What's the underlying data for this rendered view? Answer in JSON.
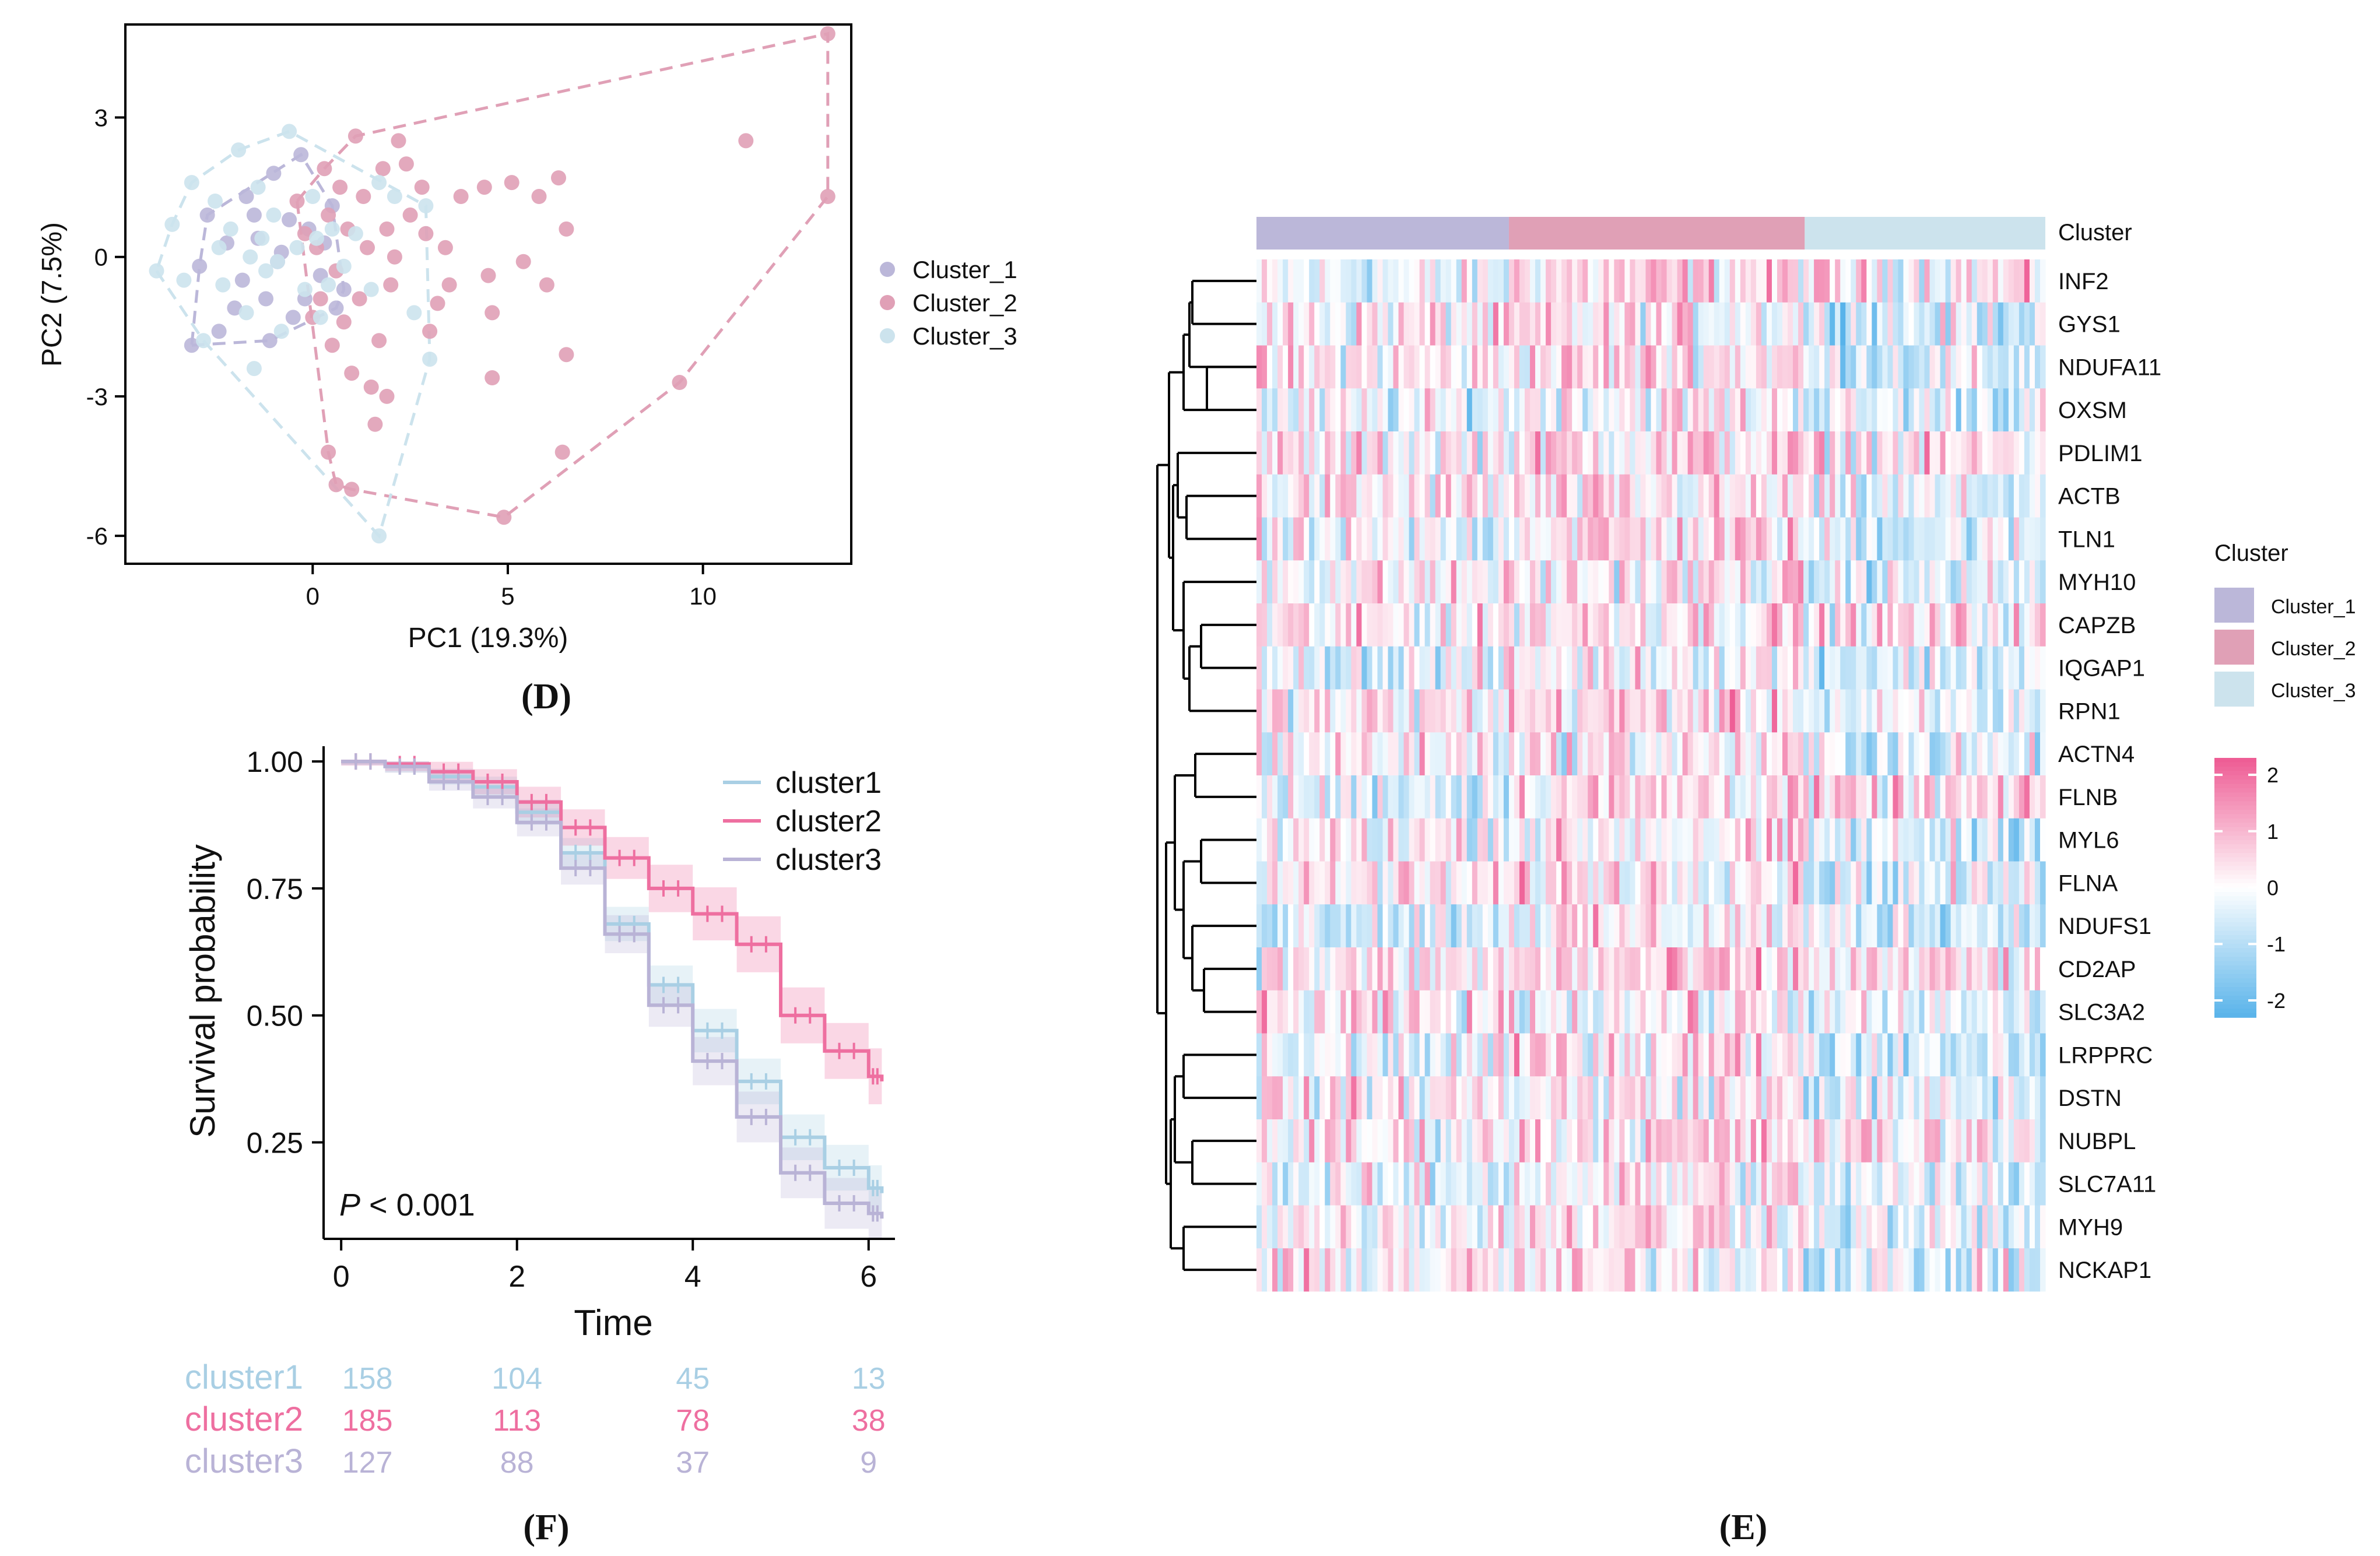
{
  "colors": {
    "cluster_1_pca": "#bbb7d9",
    "cluster_2_pca": "#e0a0b6",
    "cluster_3_pca": "#cce3ed",
    "km_cluster1": "#a9cfe4",
    "km_cluster2": "#ee6fa0",
    "km_cluster3": "#b9b3d6",
    "heat_high": "#ee5a93",
    "heat_mid": "#ffffff",
    "heat_low": "#58b3ea"
  },
  "panels": {
    "d_label": "(D)",
    "e_label": "(E)",
    "f_label": "(F)"
  },
  "chart_data": [
    {
      "id": "pca",
      "type": "scatter",
      "xlabel": "PC1 (19.3%)",
      "ylabel": "PC2 (7.5%)",
      "xlim": [
        -4.8,
        13.8
      ],
      "ylim": [
        -6.6,
        5.0
      ],
      "xticks": [
        0,
        5,
        10
      ],
      "yticks": [
        -6,
        -3,
        0,
        3
      ],
      "legend": [
        "Cluster_1",
        "Cluster_2",
        "Cluster_3"
      ],
      "series": [
        {
          "name": "Cluster_1",
          "points": [
            [
              -2.9,
              -0.2
            ],
            [
              -2.4,
              -1.6
            ],
            [
              -2.2,
              0.3
            ],
            [
              -1.8,
              -0.5
            ],
            [
              -1.5,
              0.9
            ],
            [
              -1.2,
              -0.9
            ],
            [
              -1.0,
              1.8
            ],
            [
              -0.8,
              0.1
            ],
            [
              -0.5,
              -1.3
            ],
            [
              -0.3,
              2.2
            ],
            [
              -0.1,
              0.6
            ],
            [
              0.2,
              -0.4
            ],
            [
              0.5,
              1.1
            ],
            [
              0.8,
              -0.7
            ],
            [
              -2.7,
              0.9
            ],
            [
              -2.0,
              -1.1
            ],
            [
              -1.4,
              0.4
            ],
            [
              -0.9,
              -0.1
            ],
            [
              -0.6,
              0.8
            ],
            [
              -0.2,
              -0.9
            ],
            [
              0.3,
              0.3
            ],
            [
              -1.7,
              1.3
            ],
            [
              -3.1,
              -1.9
            ],
            [
              -1.1,
              -1.8
            ],
            [
              0.6,
              -1.1
            ]
          ]
        },
        {
          "name": "Cluster_2",
          "points": [
            [
              13.2,
              4.8
            ],
            [
              13.2,
              1.3
            ],
            [
              11.1,
              2.5
            ],
            [
              9.4,
              -2.7
            ],
            [
              6.4,
              -4.2
            ],
            [
              6.5,
              -2.1
            ],
            [
              4.9,
              -5.6
            ],
            [
              4.6,
              -1.2
            ],
            [
              4.6,
              -2.6
            ],
            [
              4.5,
              -0.4
            ],
            [
              3.5,
              -0.6
            ],
            [
              3.4,
              0.2
            ],
            [
              3.2,
              -1.0
            ],
            [
              3.0,
              -1.6
            ],
            [
              2.8,
              1.5
            ],
            [
              2.5,
              0.9
            ],
            [
              2.4,
              2.0
            ],
            [
              2.2,
              2.5
            ],
            [
              2.0,
              -0.6
            ],
            [
              1.9,
              0.6
            ],
            [
              1.8,
              1.9
            ],
            [
              1.7,
              -1.8
            ],
            [
              1.6,
              -3.6
            ],
            [
              1.5,
              -2.8
            ],
            [
              1.4,
              0.2
            ],
            [
              1.3,
              1.3
            ],
            [
              1.2,
              -0.9
            ],
            [
              1.1,
              2.6
            ],
            [
              1.0,
              -5.0
            ],
            [
              1.0,
              -2.5
            ],
            [
              0.9,
              0.6
            ],
            [
              0.8,
              -1.4
            ],
            [
              0.7,
              1.5
            ],
            [
              0.6,
              -0.3
            ],
            [
              0.5,
              -1.9
            ],
            [
              0.4,
              0.9
            ],
            [
              0.3,
              1.9
            ],
            [
              0.2,
              -0.9
            ],
            [
              0.1,
              0.2
            ],
            [
              0.0,
              -1.3
            ],
            [
              -0.2,
              0.5
            ],
            [
              -0.4,
              1.2
            ],
            [
              0.4,
              -4.2
            ],
            [
              0.6,
              -4.9
            ],
            [
              2.9,
              0.5
            ],
            [
              3.8,
              1.3
            ],
            [
              4.4,
              1.5
            ],
            [
              5.1,
              1.6
            ],
            [
              5.8,
              1.3
            ],
            [
              6.3,
              1.7
            ],
            [
              6.5,
              0.6
            ],
            [
              6.0,
              -0.6
            ],
            [
              5.4,
              -0.1
            ],
            [
              1.9,
              -3.0
            ],
            [
              2.1,
              0.0
            ]
          ]
        },
        {
          "name": "Cluster_3",
          "points": [
            [
              -4.0,
              -0.3
            ],
            [
              -3.6,
              0.7
            ],
            [
              -3.1,
              1.6
            ],
            [
              -2.8,
              -1.8
            ],
            [
              -2.5,
              1.2
            ],
            [
              -2.3,
              -0.6
            ],
            [
              -2.1,
              0.6
            ],
            [
              -1.9,
              2.3
            ],
            [
              -1.7,
              -1.2
            ],
            [
              -1.6,
              0.0
            ],
            [
              -1.4,
              1.5
            ],
            [
              -1.2,
              -0.3
            ],
            [
              -1.0,
              0.9
            ],
            [
              -0.8,
              -1.6
            ],
            [
              -0.6,
              2.7
            ],
            [
              -0.4,
              0.2
            ],
            [
              -0.2,
              -0.7
            ],
            [
              0.0,
              1.3
            ],
            [
              0.2,
              -1.3
            ],
            [
              0.5,
              0.6
            ],
            [
              0.8,
              -0.2
            ],
            [
              1.1,
              0.5
            ],
            [
              1.5,
              -0.7
            ],
            [
              1.7,
              1.6
            ],
            [
              2.1,
              1.3
            ],
            [
              2.6,
              -1.2
            ],
            [
              3.0,
              -2.2
            ],
            [
              2.9,
              1.1
            ],
            [
              1.7,
              -6.0
            ],
            [
              -1.5,
              -2.4
            ],
            [
              -2.4,
              0.2
            ],
            [
              -3.3,
              -0.5
            ],
            [
              -0.9,
              -0.1
            ],
            [
              -1.3,
              0.4
            ],
            [
              0.1,
              0.4
            ],
            [
              0.4,
              -0.6
            ]
          ]
        }
      ]
    },
    {
      "id": "km",
      "type": "line",
      "xlabel": "Time",
      "ylabel": "Survival probability",
      "xlim": [
        -0.2,
        6.3
      ],
      "ylim": [
        0.06,
        1.03
      ],
      "xticks": [
        0,
        2,
        4,
        6
      ],
      "yticks": [
        0.25,
        0.5,
        0.75,
        1.0
      ],
      "ytick_labels": [
        "0.25",
        "0.50",
        "0.75",
        "1.00"
      ],
      "annotation_italic": "P",
      "annotation_rest": " < 0.001",
      "legend": [
        "cluster1",
        "cluster2",
        "cluster3"
      ],
      "series": [
        {
          "name": "cluster1",
          "x": [
            0,
            0.5,
            1.0,
            1.5,
            2.0,
            2.5,
            3.0,
            3.5,
            4.0,
            4.5,
            5.0,
            5.5,
            6.0,
            6.15
          ],
          "y": [
            1.0,
            0.99,
            0.97,
            0.95,
            0.9,
            0.82,
            0.68,
            0.56,
            0.47,
            0.37,
            0.26,
            0.2,
            0.16,
            0.15
          ]
        },
        {
          "name": "cluster2",
          "x": [
            0,
            0.5,
            1.0,
            1.5,
            2.0,
            2.5,
            3.0,
            3.5,
            4.0,
            4.5,
            5.0,
            5.5,
            6.0,
            6.15
          ],
          "y": [
            1.0,
            0.995,
            0.98,
            0.96,
            0.92,
            0.87,
            0.81,
            0.75,
            0.7,
            0.64,
            0.5,
            0.43,
            0.38,
            0.37
          ]
        },
        {
          "name": "cluster3",
          "x": [
            0,
            0.5,
            1.0,
            1.5,
            2.0,
            2.5,
            3.0,
            3.5,
            4.0,
            4.5,
            5.0,
            5.5,
            6.0,
            6.15
          ],
          "y": [
            1.0,
            0.99,
            0.96,
            0.93,
            0.88,
            0.79,
            0.66,
            0.52,
            0.41,
            0.3,
            0.19,
            0.13,
            0.11,
            0.1
          ]
        }
      ],
      "risk_table": {
        "times": [
          0,
          2,
          4,
          6
        ],
        "rows": [
          {
            "name": "cluster1",
            "counts": [
              "158",
              "104",
              "45",
              "13"
            ]
          },
          {
            "name": "cluster2",
            "counts": [
              "185",
              "113",
              "78",
              "38"
            ]
          },
          {
            "name": "cluster3",
            "counts": [
              "127",
              "88",
              "37",
              "9"
            ]
          }
        ]
      }
    },
    {
      "id": "heatmap",
      "type": "heatmap",
      "annotation_label": "Cluster",
      "annotation_fractions": [
        0.32,
        0.375,
        0.305
      ],
      "genes": [
        "INF2",
        "GYS1",
        "NDUFA11",
        "OXSM",
        "PDLIM1",
        "ACTB",
        "TLN1",
        "MYH10",
        "CAPZB",
        "IQGAP1",
        "RPN1",
        "ACTN4",
        "FLNB",
        "MYL6",
        "FLNA",
        "NDUFS1",
        "CD2AP",
        "SLC3A2",
        "LRPPRC",
        "DSTN",
        "NUBPL",
        "SLC7A11",
        "MYH9",
        "NCKAP1"
      ],
      "legend_title": "Cluster",
      "legend_entries": [
        "Cluster_1",
        "Cluster_2",
        "Cluster_3"
      ],
      "scale_ticks": [
        "2",
        "1",
        "0",
        "-1",
        "-2"
      ],
      "scale_range": [
        -2.3,
        2.3
      ]
    }
  ]
}
